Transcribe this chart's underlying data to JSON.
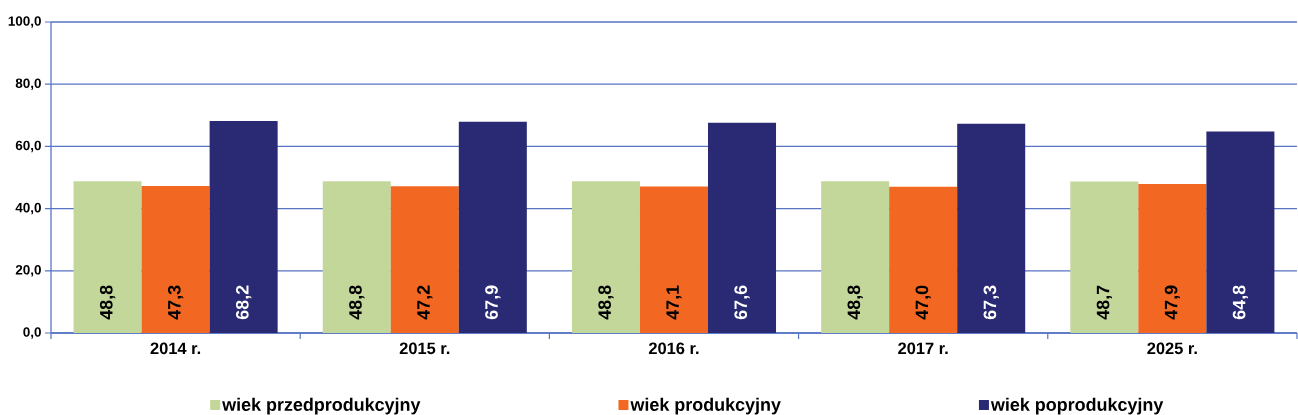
{
  "chart_data": {
    "type": "bar",
    "categories": [
      "2014 r.",
      "2015 r.",
      "2016 r.",
      "2017 r.",
      "2025 r."
    ],
    "series": [
      {
        "name": "wiek przedprodukcyjny",
        "color": "#c4d79b",
        "values": [
          48.8,
          48.8,
          48.8,
          48.8,
          48.7
        ],
        "value_labels": [
          "48,8",
          "48,8",
          "48,8",
          "48,8",
          "48,7"
        ]
      },
      {
        "name": "wiek produkcyjny",
        "color": "#f26822",
        "values": [
          47.3,
          47.2,
          47.1,
          47.0,
          47.9
        ],
        "value_labels": [
          "47,3",
          "47,2",
          "47,1",
          "47,0",
          "47,9"
        ]
      },
      {
        "name": "wiek poprodukcyjny",
        "color": "#292a73",
        "values": [
          68.2,
          67.9,
          67.6,
          67.3,
          64.8
        ],
        "value_labels": [
          "68,2",
          "67,9",
          "67,6",
          "67,3",
          "64,8"
        ]
      }
    ],
    "ylim": [
      0,
      100
    ],
    "yticks": [
      {
        "value": 0,
        "label": "0,0"
      },
      {
        "value": 20,
        "label": "20,0"
      },
      {
        "value": 40,
        "label": "40,0"
      },
      {
        "value": 60,
        "label": "60,0"
      },
      {
        "value": 80,
        "label": "80,0"
      },
      {
        "value": 100,
        "label": "100,0"
      }
    ],
    "grid": "y",
    "legend": "bottom"
  }
}
